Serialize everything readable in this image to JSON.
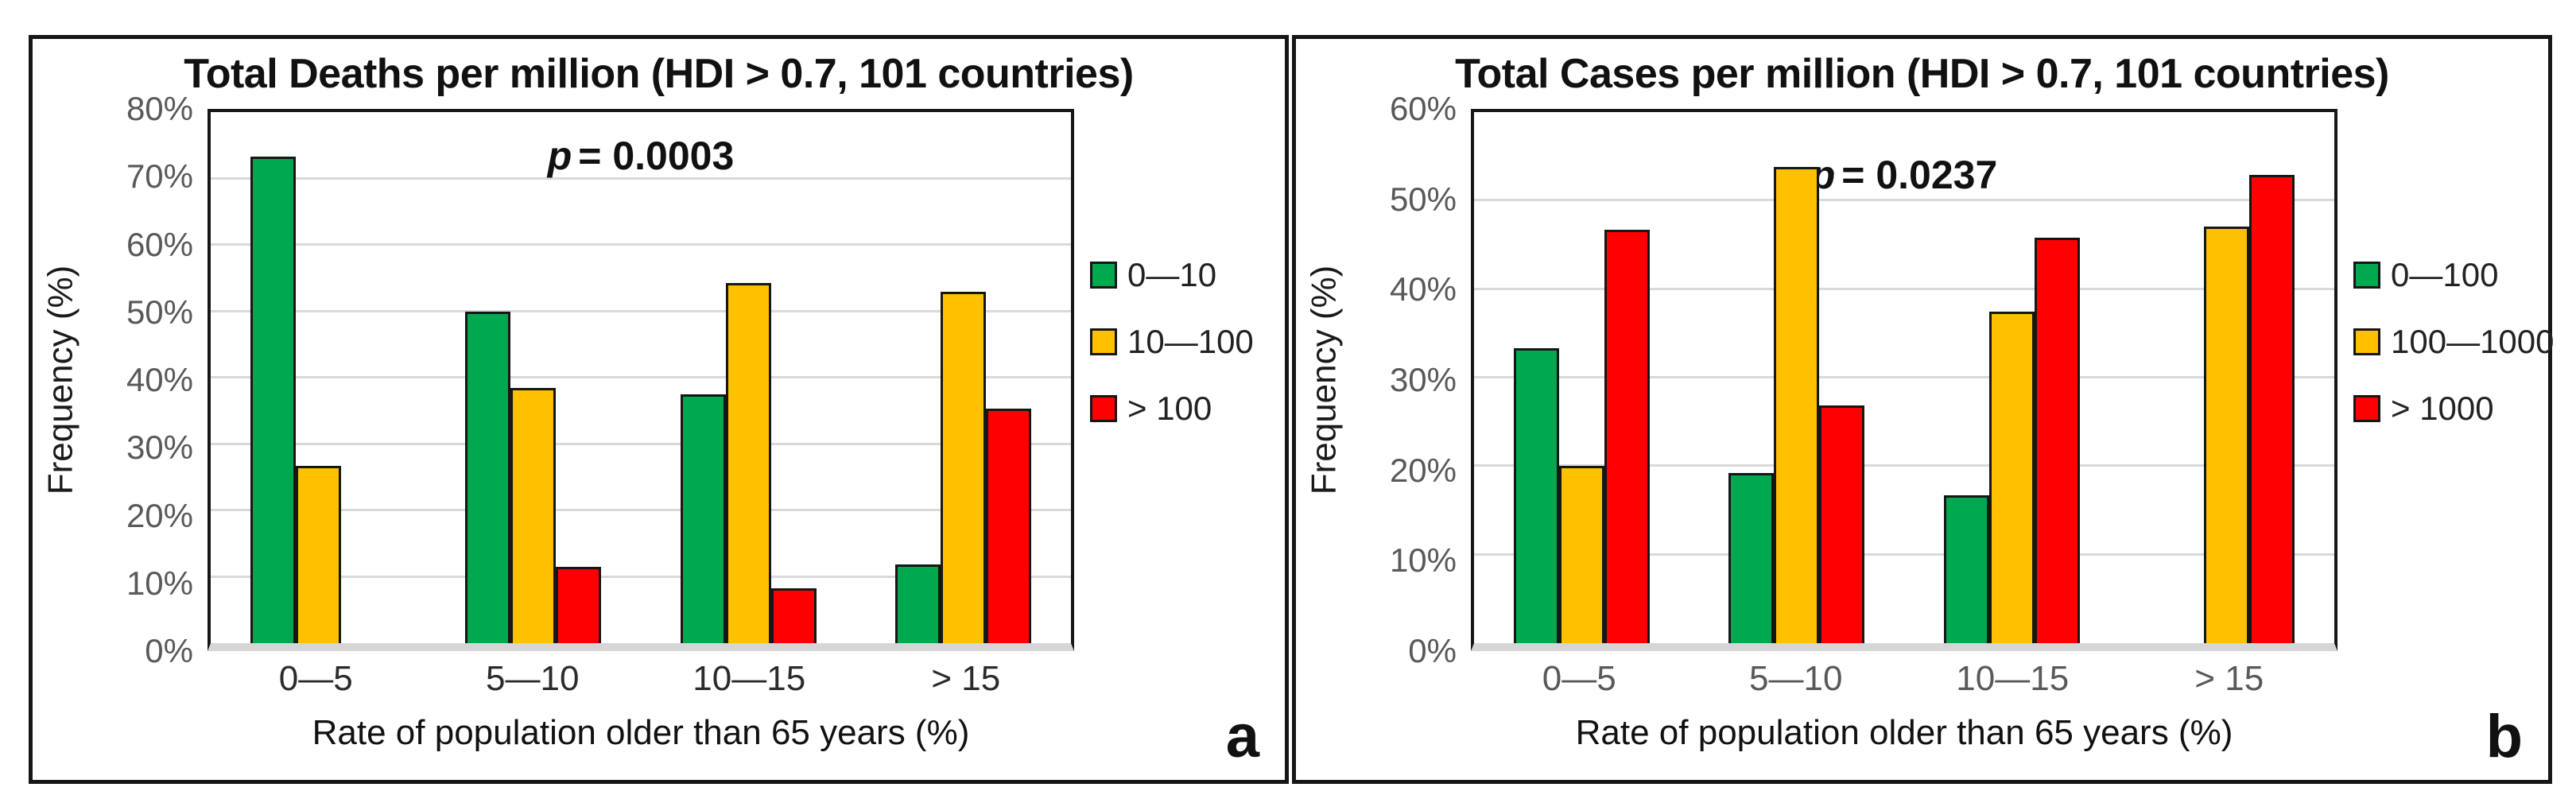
{
  "figure": {
    "background": "#ffffff",
    "panel_border_color": "#161616",
    "gridline_color": "#d9d9d9",
    "axis_band_color": "#d6d6d6",
    "ytick_color": "#595959"
  },
  "chart_data": [
    {
      "type": "bar",
      "panel_letter": "a",
      "title": "Total Deaths per million (HDI > 0.7, 101 countries)",
      "annotation": {
        "symbol": "p",
        "rest": "= 0.0003",
        "full": "p = 0.0003"
      },
      "xlabel": "Rate of population older than 65 years (%)",
      "ylabel": "Frequency (%)",
      "ylim": [
        0,
        80
      ],
      "ytick_step": 10,
      "ytick_labels": [
        "0%",
        "10%",
        "20%",
        "30%",
        "40%",
        "50%",
        "60%",
        "70%",
        "80%"
      ],
      "grid": true,
      "legend_position": "right",
      "xtick_color": "#2b2b2b",
      "categories": [
        "0—5",
        "5—10",
        "10—15",
        "> 15"
      ],
      "series": [
        {
          "name": "0—10",
          "color": "#00A950",
          "values": [
            73.3,
            50.0,
            37.5,
            11.8
          ]
        },
        {
          "name": "10—100",
          "color": "#FFC000",
          "values": [
            26.7,
            38.5,
            54.2,
            52.9
          ]
        },
        {
          "name": "> 100",
          "color": "#FF0000",
          "values": [
            0,
            11.5,
            8.3,
            35.3
          ]
        }
      ]
    },
    {
      "type": "bar",
      "panel_letter": "b",
      "title": "Total Cases per million (HDI > 0.7, 101 countries)",
      "annotation": {
        "symbol": "p",
        "rest": "= 0.0237",
        "full": "p = 0.0237"
      },
      "xlabel": "Rate of population older than 65 years (%)",
      "ylabel": "Frequency (%)",
      "ylim": [
        0,
        60
      ],
      "ytick_step": 10,
      "ytick_labels": [
        "0%",
        "10%",
        "20%",
        "30%",
        "40%",
        "50%",
        "60%"
      ],
      "grid": true,
      "legend_position": "right",
      "xtick_color": "#595959",
      "categories": [
        "0—5",
        "5—10",
        "10—15",
        "> 15"
      ],
      "series": [
        {
          "name": "0—100",
          "color": "#00A950",
          "values": [
            33.3,
            19.2,
            16.7,
            0
          ]
        },
        {
          "name": "100—1000",
          "color": "#FFC000",
          "values": [
            20.0,
            53.8,
            37.5,
            47.1
          ]
        },
        {
          "name": "> 1000",
          "color": "#FF0000",
          "values": [
            46.7,
            26.9,
            45.8,
            52.9
          ]
        }
      ]
    }
  ]
}
